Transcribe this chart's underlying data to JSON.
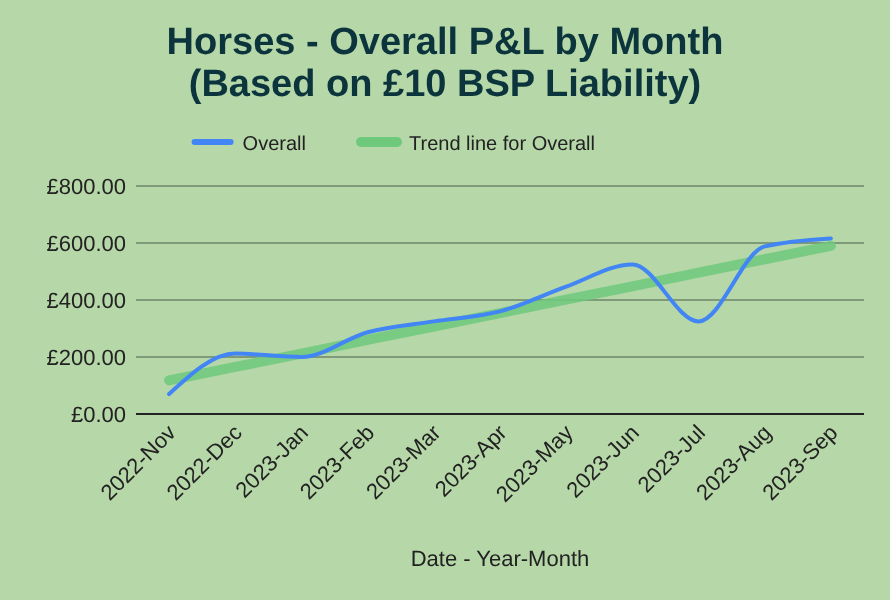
{
  "chart_data": {
    "type": "line",
    "title": "Horses - Overall P&L by Month\n(Based on £10 BSP Liability)",
    "xlabel": "Date - Year-Month",
    "categories": [
      "2022-Nov",
      "2022-Dec",
      "2023-Jan",
      "2023-Feb",
      "2023-Mar",
      "2023-Apr",
      "2023-May",
      "2023-Jun",
      "2023-Jul",
      "2023-Aug",
      "2023-Sep"
    ],
    "series": [
      {
        "name": "Overall",
        "color": "#4285f4",
        "values": [
          70,
          212,
          200,
          287,
          325,
          360,
          447,
          525,
          325,
          588,
          616
        ]
      },
      {
        "name": "Trend line for Overall",
        "color": "#6fc97c",
        "values": [
          118,
          165,
          212,
          260,
          307,
          354,
          401,
          448,
          496,
          543,
          590
        ]
      }
    ],
    "ylim": [
      0,
      800
    ],
    "yticks": [
      {
        "value": 0,
        "label": "£0.00"
      },
      {
        "value": 200,
        "label": "£200.00"
      },
      {
        "value": 400,
        "label": "£400.00"
      },
      {
        "value": 600,
        "label": "£600.00"
      },
      {
        "value": 800,
        "label": "£800.00"
      }
    ],
    "grid": "y",
    "legend": "top",
    "marker": "none"
  }
}
